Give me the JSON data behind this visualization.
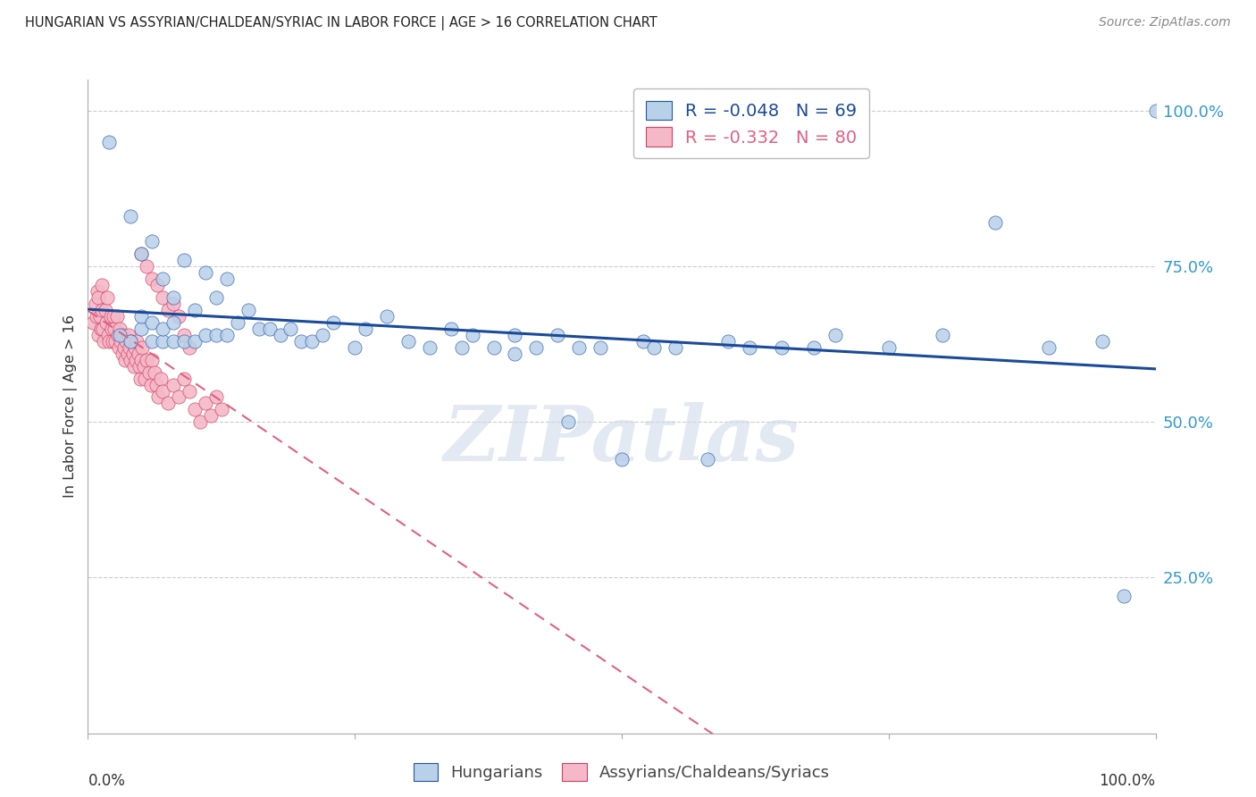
{
  "title": "HUNGARIAN VS ASSYRIAN/CHALDEAN/SYRIAC IN LABOR FORCE | AGE > 16 CORRELATION CHART",
  "source": "Source: ZipAtlas.com",
  "ylabel": "In Labor Force | Age > 16",
  "watermark": "ZIPatlas",
  "blue_fill": "#b8d0e8",
  "blue_edge": "#2255aa",
  "pink_fill": "#f4b8c8",
  "pink_edge": "#d04060",
  "blue_line": "#1a4a9a",
  "pink_line": "#e06080",
  "background": "#ffffff",
  "grid_color": "#cccccc",
  "right_label_color": "#3399cc",
  "R_blue": -0.048,
  "N_blue": 69,
  "R_pink": -0.332,
  "N_pink": 80,
  "blue_x": [
    0.02,
    0.03,
    0.04,
    0.04,
    0.05,
    0.05,
    0.05,
    0.06,
    0.06,
    0.06,
    0.07,
    0.07,
    0.07,
    0.08,
    0.08,
    0.08,
    0.09,
    0.09,
    0.1,
    0.1,
    0.11,
    0.11,
    0.12,
    0.12,
    0.13,
    0.13,
    0.14,
    0.15,
    0.16,
    0.17,
    0.18,
    0.19,
    0.2,
    0.21,
    0.22,
    0.23,
    0.25,
    0.26,
    0.28,
    0.3,
    0.32,
    0.34,
    0.35,
    0.36,
    0.38,
    0.4,
    0.4,
    0.42,
    0.44,
    0.45,
    0.46,
    0.48,
    0.5,
    0.52,
    0.53,
    0.55,
    0.58,
    0.6,
    0.62,
    0.65,
    0.68,
    0.7,
    0.75,
    0.8,
    0.85,
    0.9,
    0.95,
    0.97,
    1.0
  ],
  "blue_y": [
    0.95,
    0.64,
    0.63,
    0.83,
    0.65,
    0.67,
    0.77,
    0.63,
    0.66,
    0.79,
    0.63,
    0.65,
    0.73,
    0.63,
    0.66,
    0.7,
    0.63,
    0.76,
    0.63,
    0.68,
    0.64,
    0.74,
    0.64,
    0.7,
    0.64,
    0.73,
    0.66,
    0.68,
    0.65,
    0.65,
    0.64,
    0.65,
    0.63,
    0.63,
    0.64,
    0.66,
    0.62,
    0.65,
    0.67,
    0.63,
    0.62,
    0.65,
    0.62,
    0.64,
    0.62,
    0.61,
    0.64,
    0.62,
    0.64,
    0.5,
    0.62,
    0.62,
    0.44,
    0.63,
    0.62,
    0.62,
    0.44,
    0.63,
    0.62,
    0.62,
    0.62,
    0.64,
    0.62,
    0.64,
    0.82,
    0.62,
    0.63,
    0.22,
    1.0
  ],
  "pink_x": [
    0.005,
    0.007,
    0.008,
    0.009,
    0.01,
    0.01,
    0.011,
    0.012,
    0.013,
    0.013,
    0.014,
    0.015,
    0.016,
    0.017,
    0.018,
    0.019,
    0.02,
    0.021,
    0.022,
    0.023,
    0.024,
    0.025,
    0.026,
    0.027,
    0.028,
    0.029,
    0.03,
    0.031,
    0.032,
    0.033,
    0.034,
    0.035,
    0.036,
    0.037,
    0.038,
    0.039,
    0.04,
    0.041,
    0.042,
    0.043,
    0.044,
    0.045,
    0.046,
    0.047,
    0.048,
    0.049,
    0.05,
    0.051,
    0.052,
    0.053,
    0.055,
    0.057,
    0.059,
    0.06,
    0.062,
    0.064,
    0.066,
    0.068,
    0.07,
    0.075,
    0.08,
    0.085,
    0.09,
    0.095,
    0.1,
    0.105,
    0.11,
    0.115,
    0.12,
    0.125,
    0.05,
    0.055,
    0.06,
    0.065,
    0.07,
    0.075,
    0.08,
    0.085,
    0.09,
    0.095
  ],
  "pink_y": [
    0.66,
    0.69,
    0.67,
    0.71,
    0.64,
    0.7,
    0.67,
    0.65,
    0.68,
    0.72,
    0.65,
    0.63,
    0.68,
    0.66,
    0.7,
    0.64,
    0.63,
    0.67,
    0.65,
    0.63,
    0.67,
    0.65,
    0.63,
    0.67,
    0.64,
    0.62,
    0.65,
    0.63,
    0.61,
    0.64,
    0.62,
    0.6,
    0.63,
    0.61,
    0.64,
    0.62,
    0.6,
    0.63,
    0.61,
    0.59,
    0.62,
    0.6,
    0.63,
    0.61,
    0.59,
    0.57,
    0.6,
    0.62,
    0.59,
    0.57,
    0.6,
    0.58,
    0.56,
    0.6,
    0.58,
    0.56,
    0.54,
    0.57,
    0.55,
    0.53,
    0.56,
    0.54,
    0.57,
    0.55,
    0.52,
    0.5,
    0.53,
    0.51,
    0.54,
    0.52,
    0.77,
    0.75,
    0.73,
    0.72,
    0.7,
    0.68,
    0.69,
    0.67,
    0.64,
    0.62
  ]
}
